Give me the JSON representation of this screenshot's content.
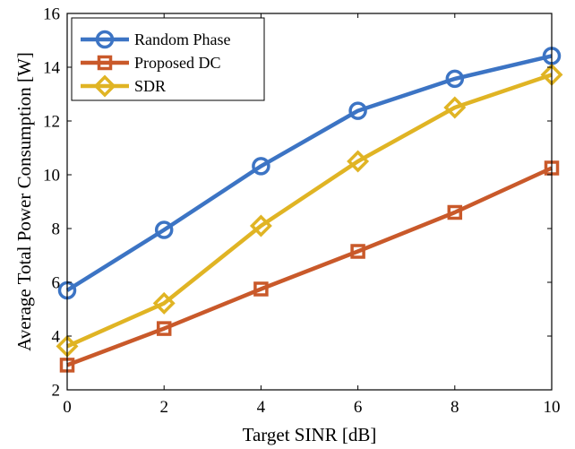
{
  "chart_data": {
    "type": "line",
    "xlabel": "Target SINR [dB]",
    "ylabel": "Average Total Power Consumption [W]",
    "x": [
      0,
      2,
      4,
      6,
      8,
      10
    ],
    "xlim": [
      0,
      10
    ],
    "ylim": [
      2,
      16
    ],
    "xticks": [
      "0",
      "2",
      "4",
      "6",
      "8",
      "10"
    ],
    "yticks": [
      "2",
      "4",
      "6",
      "8",
      "10",
      "12",
      "14",
      "16"
    ],
    "grid": false,
    "legend_position": "top-left",
    "series": [
      {
        "name": "Random Phase",
        "marker": "circle",
        "color": "#3C74C4",
        "values": [
          5.7,
          7.95,
          10.32,
          12.38,
          13.57,
          14.42
        ]
      },
      {
        "name": "Proposed DC",
        "marker": "square",
        "color": "#C9592A",
        "values": [
          2.92,
          4.28,
          5.75,
          7.15,
          8.6,
          10.25
        ]
      },
      {
        "name": "SDR",
        "marker": "diamond",
        "color": "#E0B424",
        "values": [
          3.62,
          5.22,
          8.1,
          10.5,
          12.5,
          13.72
        ]
      }
    ]
  }
}
